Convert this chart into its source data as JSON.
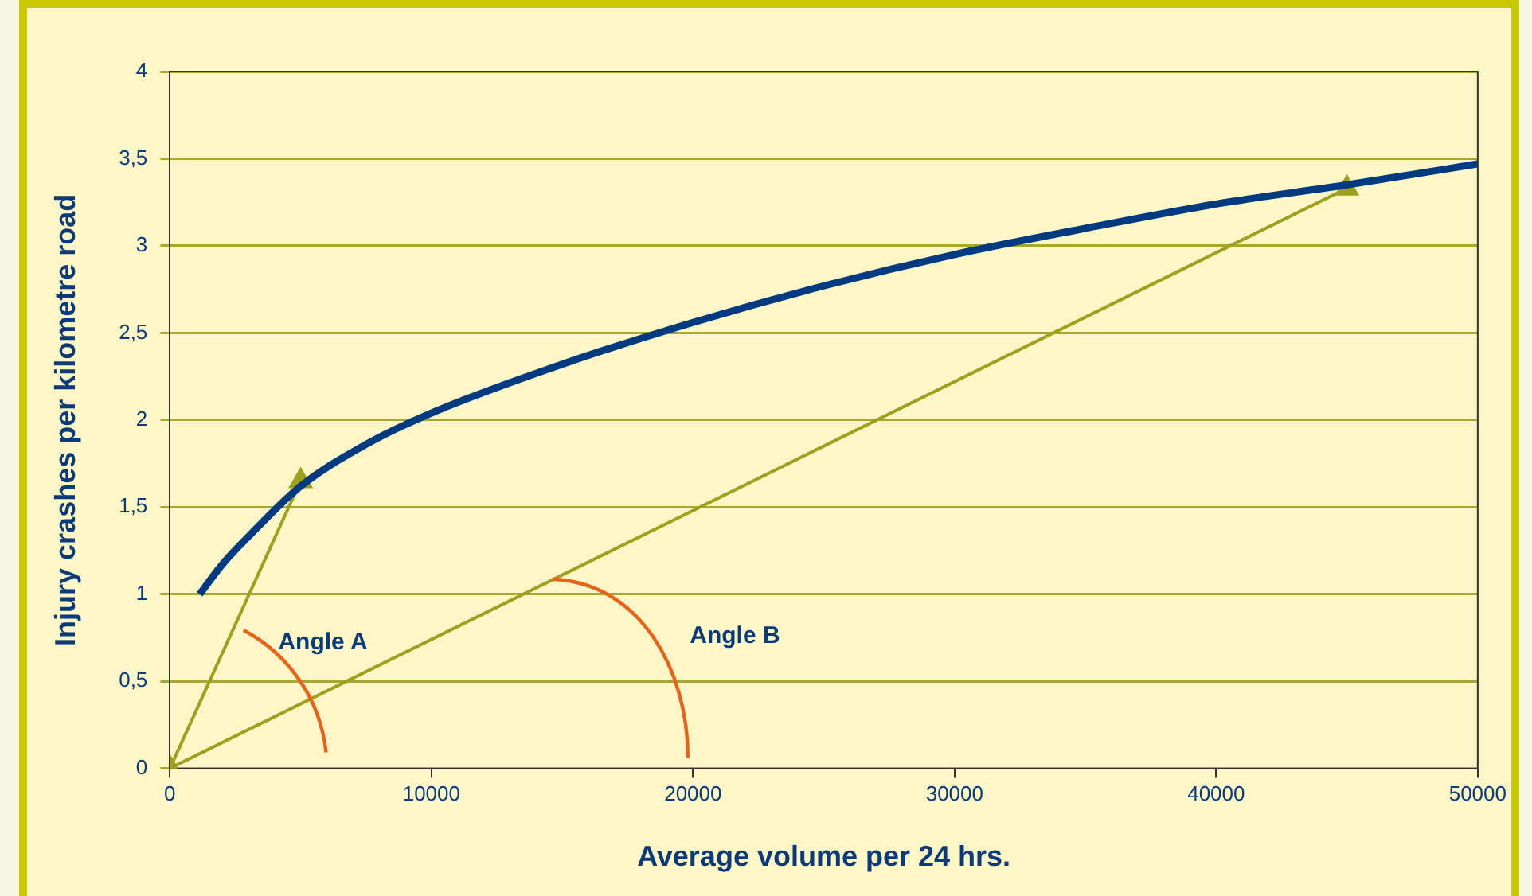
{
  "chart_data": {
    "type": "line",
    "xlabel": "Average volume per 24 hrs.",
    "ylabel": "Injury crashes per kilometre road",
    "xlim": [
      0,
      50000
    ],
    "xticks": [
      0,
      10000,
      20000,
      30000,
      40000,
      50000
    ],
    "ylim": [
      0,
      4
    ],
    "yticks": [
      0,
      {
        "value": 0.5,
        "label": "0,5"
      },
      1,
      {
        "value": 1.5,
        "label": "1,5"
      },
      2,
      {
        "value": 2.5,
        "label": "2,5"
      },
      3,
      {
        "value": 3.5,
        "label": "3,5"
      },
      4
    ],
    "grid": "y",
    "legend": false,
    "line_style": "solid",
    "series": [
      {
        "color": "#003a80",
        "marker": "none",
        "x": [
          1140,
          2000,
          3000,
          5000,
          7500,
          10000,
          15000,
          20000,
          25000,
          30000,
          35000,
          40000,
          45000,
          50000
        ],
        "values": [
          1.0,
          1.17,
          1.33,
          1.62,
          1.86,
          2.04,
          2.32,
          2.56,
          2.77,
          2.95,
          3.1,
          3.24,
          3.35,
          3.47
        ]
      },
      {
        "color": "#9ea01e",
        "marker": "triangle",
        "x": [
          0,
          5000
        ],
        "values": [
          0,
          1.65
        ]
      },
      {
        "color": "#9ea01e",
        "marker": "triangle",
        "x": [
          0,
          45000
        ],
        "values": [
          0,
          3.33
        ]
      }
    ],
    "annotations": [
      "Angle A",
      "Angle B"
    ]
  }
}
